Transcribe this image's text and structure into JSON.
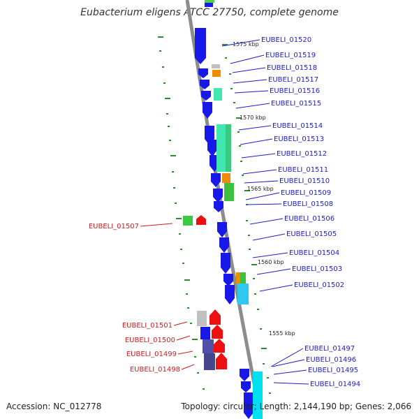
{
  "title": "Eubacterium eligens ATCC 27750, complete genome",
  "accession_text": "Accession: NC_012778",
  "summary_text": "Topology: circular; Length: 2,144,190 bp; Genes: 2,066",
  "colors": {
    "backbone": "#8c8c8c",
    "blue_label": "#1c1ccc",
    "red_label": "#cc1c1c",
    "cds_blue": "#1818e8",
    "cds_red": "#ee1010",
    "tick_green": "#2e8b2e"
  },
  "scale_labels": [
    {
      "id": "kbp-1575",
      "text": "1575 kbp"
    },
    {
      "id": "kbp-1570",
      "text": "1570 kbp"
    },
    {
      "id": "kbp-1565",
      "text": "1565 kbp"
    },
    {
      "id": "kbp-1560",
      "text": "1560 kbp"
    },
    {
      "id": "kbp-1555",
      "text": "1555 kbp"
    }
  ],
  "genes_right": [
    {
      "id": "01520",
      "label": "EUBELI_01520"
    },
    {
      "id": "01519",
      "label": "EUBELI_01519"
    },
    {
      "id": "01518",
      "label": "EUBELI_01518"
    },
    {
      "id": "01517",
      "label": "EUBELI_01517"
    },
    {
      "id": "01516",
      "label": "EUBELI_01516"
    },
    {
      "id": "01515",
      "label": "EUBELI_01515"
    },
    {
      "id": "01514",
      "label": "EUBELI_01514"
    },
    {
      "id": "01513",
      "label": "EUBELI_01513"
    },
    {
      "id": "01512",
      "label": "EUBELI_01512"
    },
    {
      "id": "01511",
      "label": "EUBELI_01511"
    },
    {
      "id": "01510",
      "label": "EUBELI_01510"
    },
    {
      "id": "01509",
      "label": "EUBELI_01509"
    },
    {
      "id": "01508",
      "label": "EUBELI_01508"
    },
    {
      "id": "01506",
      "label": "EUBELI_01506"
    },
    {
      "id": "01505",
      "label": "EUBELI_01505"
    },
    {
      "id": "01504",
      "label": "EUBELI_01504"
    },
    {
      "id": "01503",
      "label": "EUBELI_01503"
    },
    {
      "id": "01502",
      "label": "EUBELI_01502"
    },
    {
      "id": "01497",
      "label": "EUBELI_01497"
    },
    {
      "id": "01496",
      "label": "EUBELI_01496"
    },
    {
      "id": "01495",
      "label": "EUBELI_01495"
    },
    {
      "id": "01494",
      "label": "EUBELI_01494"
    }
  ],
  "genes_left": [
    {
      "id": "01507",
      "label": "EUBELI_01507"
    },
    {
      "id": "01501",
      "label": "EUBELI_01501"
    },
    {
      "id": "01500",
      "label": "EUBELI_01500"
    },
    {
      "id": "01499",
      "label": "EUBELI_01499"
    },
    {
      "id": "01498",
      "label": "EUBELI_01498"
    }
  ]
}
